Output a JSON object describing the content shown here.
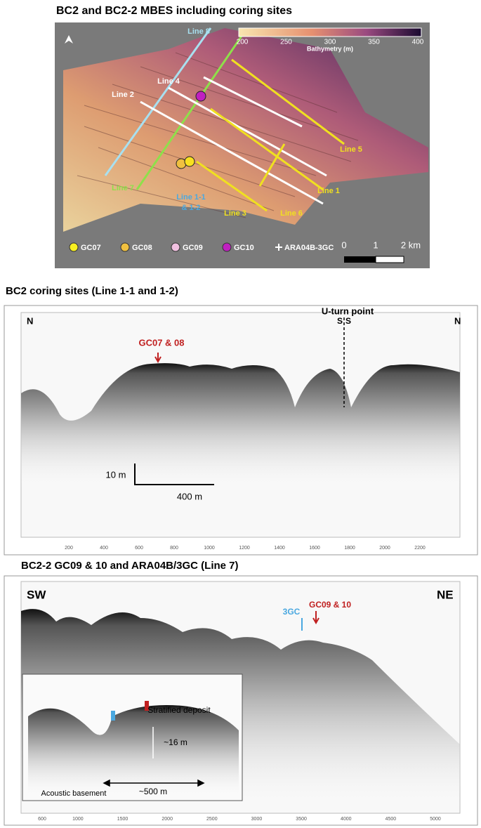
{
  "panel_a": {
    "title": "BC2 and BC2-2 MBES including coring sites",
    "colorbar": {
      "label": "Bathymetry (m)",
      "ticks": [
        200,
        250,
        300,
        350,
        400
      ]
    },
    "lines": [
      "Line 8",
      "Line 4",
      "Line 2",
      "Line 7",
      "Line 1-1",
      "& 1-2",
      "Line 3",
      "Line 6",
      "Line 1",
      "Line 5"
    ],
    "legend": [
      "GC07",
      "GC08",
      "GC09",
      "GC10",
      "ARA04B-3GC"
    ],
    "scale": [
      "0",
      "1",
      "2 km"
    ]
  },
  "panel_b": {
    "title": "BC2 coring sites (Line 1-1 and 1-2)",
    "labels": [
      "N",
      "N",
      "U-turn point",
      "S",
      "S",
      "GC07 & 08",
      "10 m",
      "400 m"
    ],
    "xticks": [
      200,
      400,
      600,
      800,
      1000,
      1200,
      1400,
      1600,
      1800,
      2000,
      2200
    ]
  },
  "panel_c": {
    "title": "BC2-2 GC09 & 10 and ARA04B/3GC (Line 7)",
    "labels": [
      "SW",
      "NE",
      "3GC",
      "GC09 & 10",
      "Stratified deposit",
      "~16 m",
      "~500 m",
      "Acoustic basement"
    ],
    "xticks": [
      600,
      1000,
      1500,
      2000,
      2500,
      3000,
      3500,
      4000,
      4500,
      5000
    ]
  }
}
